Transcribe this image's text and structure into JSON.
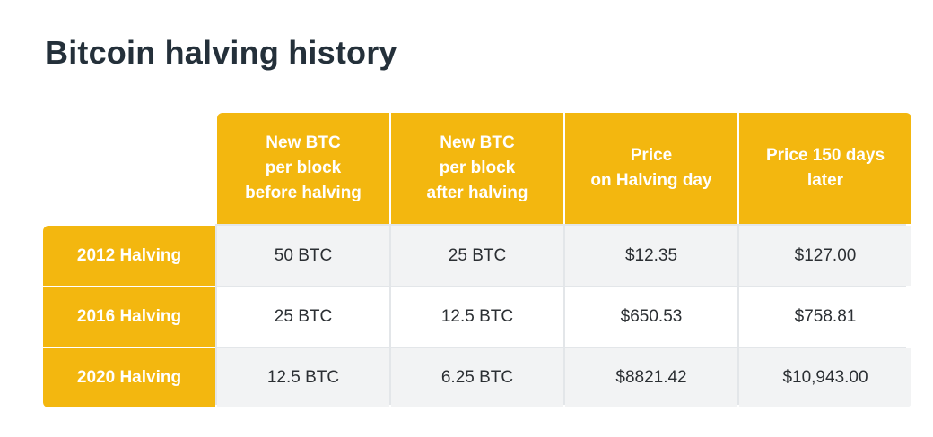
{
  "title": "Bitcoin halving history",
  "table": {
    "columns": [
      "New BTC\nper block\nbefore halving",
      "New BTC\nper block\nafter halving",
      "Price\non Halving day",
      "Price 150 days\nlater"
    ],
    "rows": [
      {
        "label": "2012 Halving",
        "cells": [
          "50 BTC",
          "25 BTC",
          "$12.35",
          "$127.00"
        ]
      },
      {
        "label": "2016 Halving",
        "cells": [
          "25 BTC",
          "12.5 BTC",
          "$650.53",
          "$758.81"
        ]
      },
      {
        "label": "2020 Halving",
        "cells": [
          "12.5 BTC",
          "6.25 BTC",
          "$8821.42",
          "$10,943.00"
        ]
      }
    ]
  },
  "colors": {
    "accent": "#f3b70f",
    "title": "#24303a",
    "row_shade": "#f2f3f4"
  }
}
